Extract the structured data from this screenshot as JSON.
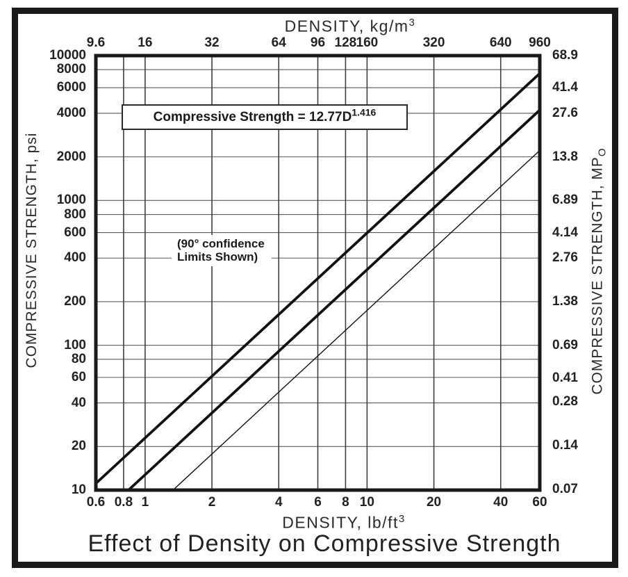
{
  "colors": {
    "background": "#ffffff",
    "ink": "#1a1a1a",
    "grid_vertical": "#3f3f3f",
    "grid_horizontal": "#5a5a5a",
    "series_line": "#111111"
  },
  "chart_data": {
    "type": "line",
    "title": "Effect of Density on Compressive Strength",
    "scales": {
      "x": "log",
      "y": "log"
    },
    "x_axis_bottom": {
      "label": "DENSITY, lb/ft",
      "label_sup": "3",
      "range": [
        0.6,
        60
      ],
      "ticks": [
        {
          "label": "0.6",
          "value": 0.6
        },
        {
          "label": "0.8",
          "value": 0.8
        },
        {
          "label": "1",
          "value": 1
        },
        {
          "label": "2",
          "value": 2
        },
        {
          "label": "4",
          "value": 4
        },
        {
          "label": "6",
          "value": 6
        },
        {
          "label": "8",
          "value": 8
        },
        {
          "label": "10",
          "value": 10
        },
        {
          "label": "20",
          "value": 20
        },
        {
          "label": "40",
          "value": 40
        },
        {
          "label": "60",
          "value": 60
        }
      ]
    },
    "x_axis_top": {
      "label": "DENSITY, kg/m",
      "label_sup": "3",
      "ticks": [
        {
          "label": "9.6",
          "value_lbft3": 0.6
        },
        {
          "label": "16",
          "value_lbft3": 1
        },
        {
          "label": "32",
          "value_lbft3": 2
        },
        {
          "label": "64",
          "value_lbft3": 4
        },
        {
          "label": "96",
          "value_lbft3": 6
        },
        {
          "label": "128",
          "value_lbft3": 8
        },
        {
          "label": "160",
          "value_lbft3": 10
        },
        {
          "label": "320",
          "value_lbft3": 20
        },
        {
          "label": "640",
          "value_lbft3": 40
        },
        {
          "label": "960",
          "value_lbft3": 60
        }
      ]
    },
    "y_axis_left": {
      "label": "COMPRESSIVE STRENGTH, psi",
      "range": [
        10,
        10000
      ],
      "ticks": [
        {
          "label": "10000",
          "value": 10000
        },
        {
          "label": "8000",
          "value": 8000
        },
        {
          "label": "6000",
          "value": 6000
        },
        {
          "label": "4000",
          "value": 4000
        },
        {
          "label": "2000",
          "value": 2000
        },
        {
          "label": "1000",
          "value": 1000
        },
        {
          "label": "800",
          "value": 800
        },
        {
          "label": "600",
          "value": 600
        },
        {
          "label": "400",
          "value": 400
        },
        {
          "label": "200",
          "value": 200
        },
        {
          "label": "100",
          "value": 100
        },
        {
          "label": "80",
          "value": 80
        },
        {
          "label": "60",
          "value": 60
        },
        {
          "label": "40",
          "value": 40
        },
        {
          "label": "20",
          "value": 20
        },
        {
          "label": "10",
          "value": 10
        }
      ]
    },
    "y_axis_right": {
      "label": "COMPRESSIVE STRENGTH, MP",
      "label_sub": "O",
      "ticks": [
        {
          "label": "68.9",
          "value_psi": 9993
        },
        {
          "label": "41.4",
          "value_psi": 6004
        },
        {
          "label": "27.6",
          "value_psi": 4003
        },
        {
          "label": "13.8",
          "value_psi": 2001
        },
        {
          "label": "6.89",
          "value_psi": 999
        },
        {
          "label": "4.14",
          "value_psi": 600
        },
        {
          "label": "2.76",
          "value_psi": 400
        },
        {
          "label": "1.38",
          "value_psi": 200
        },
        {
          "label": "0.69",
          "value_psi": 100
        },
        {
          "label": "0.41",
          "value_psi": 59.5
        },
        {
          "label": "0.28",
          "value_psi": 40.6
        },
        {
          "label": "0.14",
          "value_psi": 20.3
        },
        {
          "label": "0.07",
          "value_psi": 10.15
        }
      ]
    },
    "gridlines": {
      "vertical_lbft3": [
        0.8,
        1,
        2,
        4,
        6,
        8,
        10,
        20,
        40
      ],
      "horizontal_psi": [
        20,
        40,
        60,
        80,
        100,
        200,
        400,
        600,
        800,
        1000,
        2000,
        4000,
        6000,
        8000
      ]
    },
    "series": [
      {
        "name": "upper-90-confidence-limit",
        "points_lbft3_psi": [
          [
            0.6,
            11.12
          ],
          [
            60,
            7534
          ]
        ],
        "stroke_width": 3.8
      },
      {
        "name": "best-fit-line",
        "points_lbft3_psi": [
          [
            0.8413,
            10
          ],
          [
            60,
            4209
          ]
        ],
        "stroke_width": 3.8
      },
      {
        "name": "lower-90-confidence-limit",
        "points_lbft3_psi": [
          [
            1.335,
            10
          ],
          [
            60,
            2214
          ]
        ],
        "stroke_width": 1.4
      }
    ],
    "annotations": {
      "equation": {
        "text": "Compressive Strength = 12.77D",
        "sup": "1.416"
      },
      "note": {
        "line1": "(90° confidence",
        "line2": "Limits Shown)"
      }
    }
  }
}
